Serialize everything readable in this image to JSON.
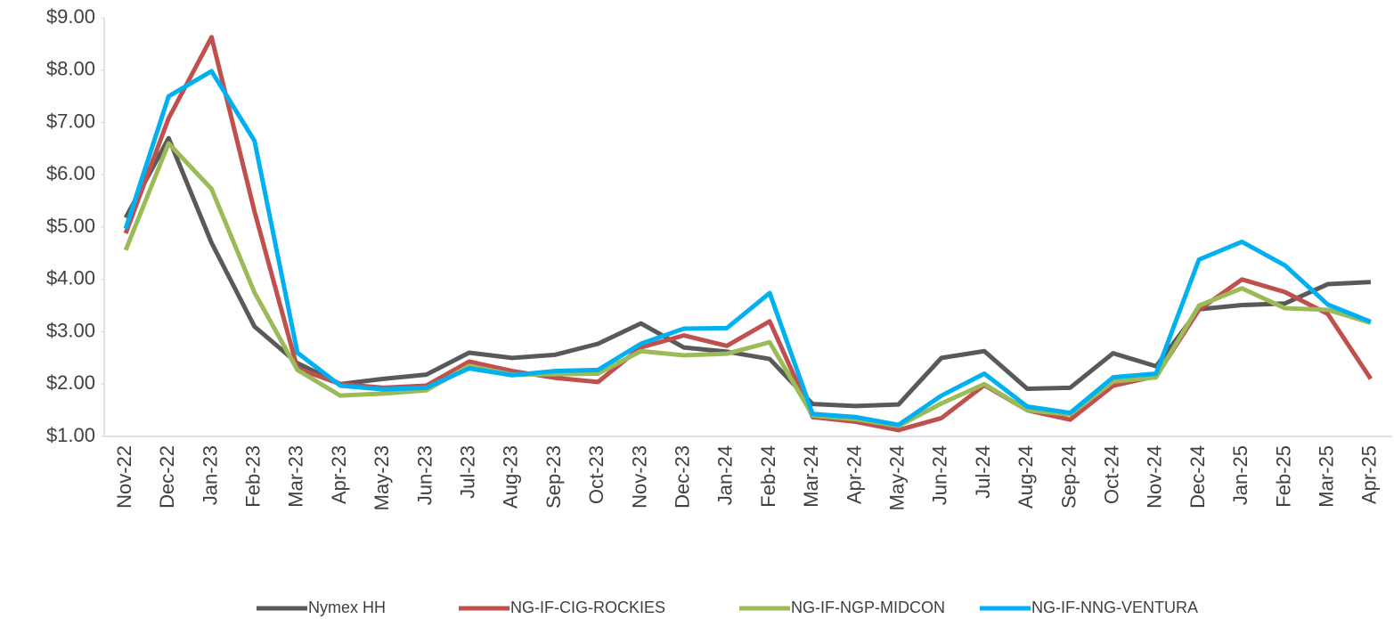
{
  "chart_data": {
    "type": "line",
    "categories": [
      "Nov-22",
      "Dec-22",
      "Jan-23",
      "Feb-23",
      "Mar-23",
      "Apr-23",
      "May-23",
      "Jun-23",
      "Jul-23",
      "Aug-23",
      "Sep-23",
      "Oct-23",
      "Nov-23",
      "Dec-23",
      "Jan-24",
      "Feb-24",
      "Mar-24",
      "Apr-24",
      "May-24",
      "Jun-24",
      "Jul-24",
      "Aug-24",
      "Sep-24",
      "Oct-24",
      "Nov-24",
      "Dec-24",
      "Jan-25",
      "Feb-25",
      "Mar-25",
      "Apr-25"
    ],
    "series": [
      {
        "name": "Nymex HH",
        "color": "#595959",
        "values": [
          5.18,
          6.7,
          4.7,
          3.1,
          2.4,
          2.0,
          2.1,
          2.18,
          2.6,
          2.5,
          2.56,
          2.77,
          3.16,
          2.7,
          2.62,
          2.48,
          1.62,
          1.58,
          1.61,
          2.5,
          2.63,
          1.91,
          1.93,
          2.59,
          2.34,
          3.43,
          3.51,
          3.54,
          3.91,
          3.95
        ]
      },
      {
        "name": "NG-IF-CIG-ROCKIES",
        "color": "#c0504d",
        "values": [
          4.88,
          7.08,
          8.63,
          5.3,
          2.3,
          2.0,
          1.93,
          1.97,
          2.43,
          2.25,
          2.12,
          2.04,
          2.7,
          2.93,
          2.73,
          3.2,
          1.37,
          1.28,
          1.12,
          1.35,
          1.98,
          1.5,
          1.32,
          1.97,
          2.15,
          3.42,
          4.0,
          3.76,
          3.34,
          2.1
        ]
      },
      {
        "name": "NG-IF-NGP-MIDCON",
        "color": "#9bbb59",
        "values": [
          4.56,
          6.6,
          5.73,
          3.75,
          2.27,
          1.78,
          1.82,
          1.88,
          2.35,
          2.18,
          2.19,
          2.2,
          2.63,
          2.55,
          2.58,
          2.8,
          1.4,
          1.33,
          1.2,
          1.63,
          2.0,
          1.5,
          1.42,
          2.05,
          2.13,
          3.5,
          3.83,
          3.45,
          3.42,
          3.17
        ]
      },
      {
        "name": "NG-IF-NNG-VENTURA",
        "color": "#00b0f0",
        "values": [
          4.97,
          7.5,
          7.98,
          6.65,
          2.6,
          1.97,
          1.9,
          1.93,
          2.3,
          2.17,
          2.25,
          2.27,
          2.77,
          3.06,
          3.07,
          3.74,
          1.43,
          1.37,
          1.22,
          1.78,
          2.2,
          1.57,
          1.45,
          2.13,
          2.2,
          4.38,
          4.72,
          4.27,
          3.52,
          3.19
        ]
      }
    ],
    "ylim": [
      1,
      9
    ],
    "yticks": [
      {
        "value": 1,
        "label": "$1.00"
      },
      {
        "value": 2,
        "label": "$2.00"
      },
      {
        "value": 3,
        "label": "$3.00"
      },
      {
        "value": 4,
        "label": "$4.00"
      },
      {
        "value": 5,
        "label": "$5.00"
      },
      {
        "value": 6,
        "label": "$6.00"
      },
      {
        "value": 7,
        "label": "$7.00"
      },
      {
        "value": 8,
        "label": "$8.00"
      },
      {
        "value": 9,
        "label": "$9.00"
      }
    ],
    "grid": false,
    "legend": "bottom"
  }
}
